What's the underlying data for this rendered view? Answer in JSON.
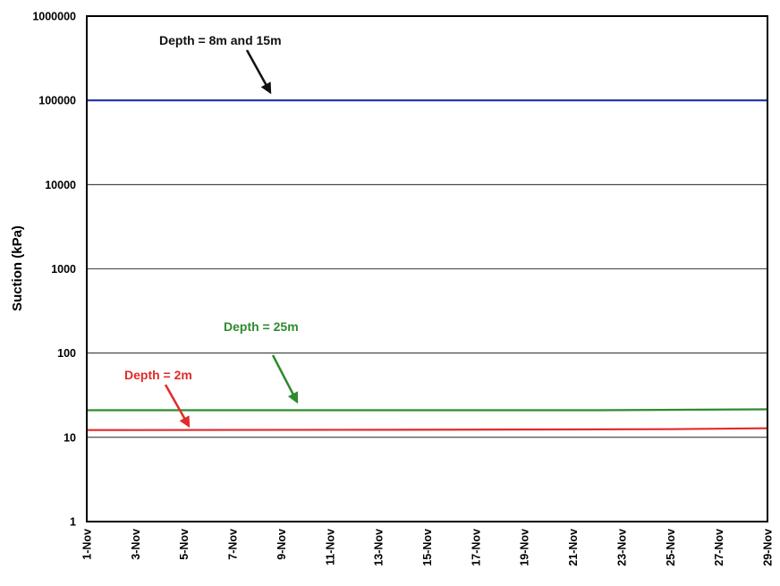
{
  "chart_data": {
    "type": "line",
    "title": "",
    "xlabel": "",
    "ylabel": "Suction (kPa)",
    "yscale": "log",
    "ylim": [
      1,
      1000000
    ],
    "y_ticks": [
      "1",
      "10",
      "100",
      "1000",
      "10000",
      "100000",
      "1000000"
    ],
    "xlim": [
      "2012-11-01",
      "2012-11-29"
    ],
    "x_ticks": [
      "1-Nov",
      "3-Nov",
      "5-Nov",
      "7-Nov",
      "9-Nov",
      "11-Nov",
      "13-Nov",
      "15-Nov",
      "17-Nov",
      "19-Nov",
      "21-Nov",
      "23-Nov",
      "25-Nov",
      "27-Nov",
      "29-Nov"
    ],
    "grid": "horizontal",
    "legend": "none",
    "series": [
      {
        "name": "Depth = 8m and 15m",
        "color": "#1f2fa8",
        "x": [
          "2012-11-01",
          "2012-11-29"
        ],
        "y": [
          100000,
          100000
        ]
      },
      {
        "name": "Depth = 25m",
        "color": "#2e8b2e",
        "x": [
          "2012-11-01",
          "2012-11-22",
          "2012-11-29"
        ],
        "y": [
          21,
          21,
          21.5
        ]
      },
      {
        "name": "Depth = 2m",
        "color": "#e02b2b",
        "x": [
          "2012-11-01",
          "2012-11-14",
          "2012-11-25",
          "2012-11-29"
        ],
        "y": [
          12.2,
          12.3,
          12.5,
          12.8
        ]
      }
    ],
    "annotations": [
      {
        "text": "Depth = 8m and 15m",
        "color": "#111111",
        "series": 0
      },
      {
        "text": "Depth = 25m",
        "color": "#2e8b2e",
        "series": 1
      },
      {
        "text": "Depth = 2m",
        "color": "#e02b2b",
        "series": 2
      }
    ]
  }
}
